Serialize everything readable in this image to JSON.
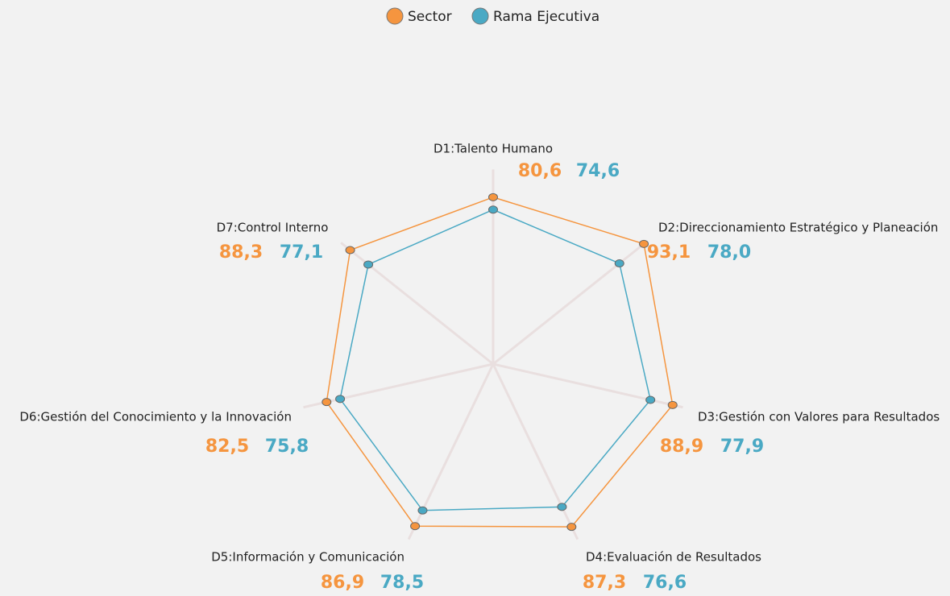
{
  "chart_data": {
    "type": "radar",
    "categories": [
      "D1:Talento Humano",
      "D2:Direccionamiento Estratégico y Planeación",
      "D3:Gestión con Valores para Resultados",
      "D4:Evaluación de Resultados",
      "D5:Información y Comunicación",
      "D6:Gestión del Conocimiento y la Innovación",
      "D7:Control Interno"
    ],
    "series": [
      {
        "name": "Sector",
        "color": "#f5953f",
        "values": [
          80.6,
          93.1,
          88.9,
          87.3,
          86.9,
          82.5,
          88.3
        ],
        "value_labels": [
          "80,6",
          "93,1",
          "88,9",
          "87,3",
          "86,9",
          "82,5",
          "88,3"
        ]
      },
      {
        "name": "Rama Ejecutiva",
        "color": "#4aa9c4",
        "values": [
          74.6,
          78.0,
          77.9,
          76.6,
          78.5,
          75.8,
          77.1
        ],
        "value_labels": [
          "74,6",
          "78,0",
          "77,9",
          "76,6",
          "78,5",
          "75,8",
          "77,1"
        ]
      }
    ],
    "rlim": [
      0,
      100
    ],
    "legend": "top"
  }
}
